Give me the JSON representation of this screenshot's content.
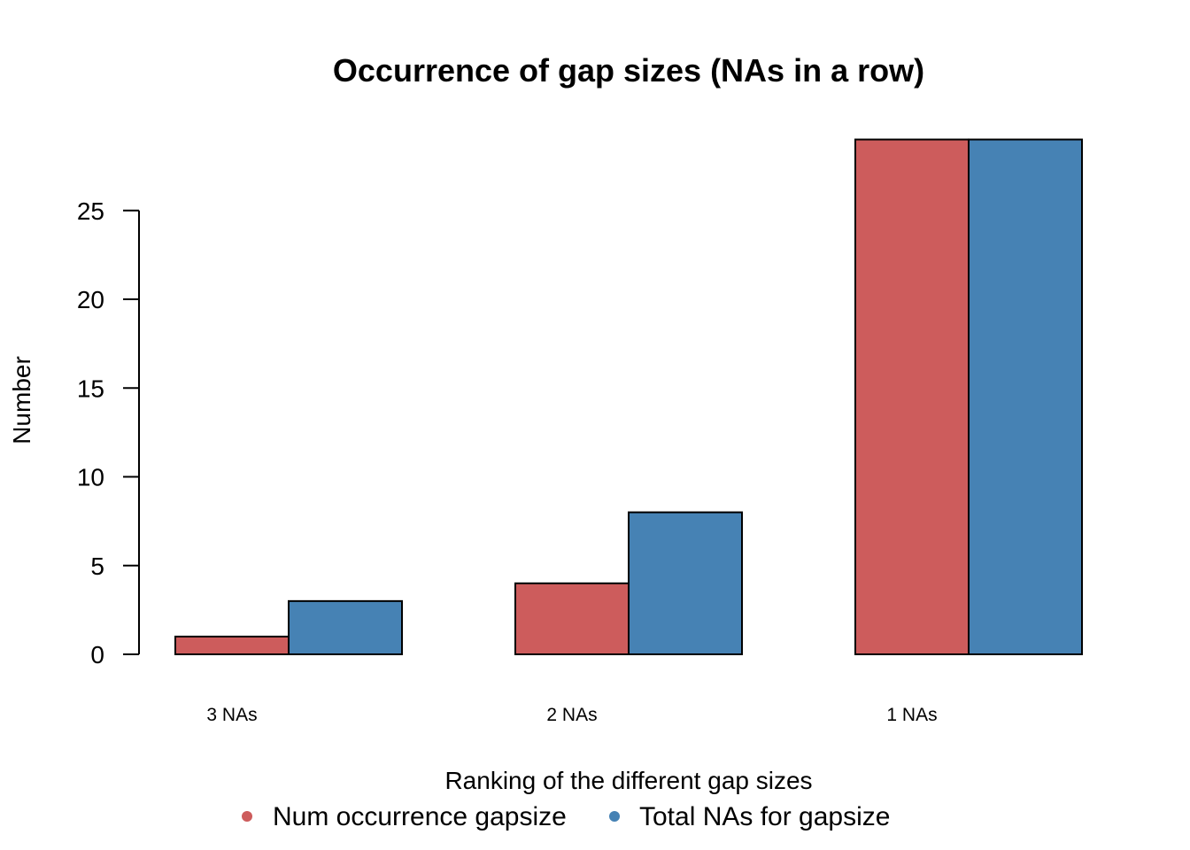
{
  "chart_data": {
    "type": "bar",
    "title": "Occurrence of gap sizes (NAs in a row)",
    "xlabel": "Ranking of the different gap sizes",
    "ylabel": "Number",
    "categories": [
      "3 NAs",
      "2 NAs",
      "1 NAs"
    ],
    "series": [
      {
        "name": "Num occurrence gapsize",
        "values": [
          1,
          4,
          29
        ],
        "color": "#CD5C5C"
      },
      {
        "name": "Total NAs for gapsize",
        "values": [
          3,
          8,
          29
        ],
        "color": "#4682B4"
      }
    ],
    "yticks": [
      0,
      5,
      10,
      15,
      20,
      25
    ],
    "ylim": [
      0,
      29
    ],
    "grid": false,
    "legend_position": "bottom"
  }
}
